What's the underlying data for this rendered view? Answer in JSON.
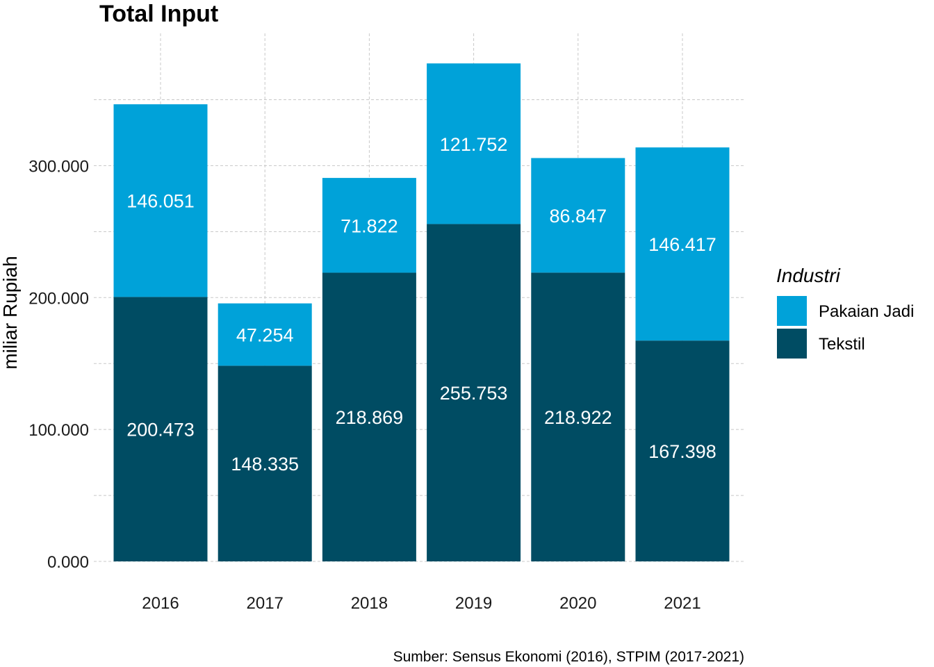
{
  "chart_data": {
    "type": "bar",
    "stacked": true,
    "title": "Total Input",
    "ylabel": "miliar Rupiah",
    "xlabel": "",
    "categories": [
      "2016",
      "2017",
      "2018",
      "2019",
      "2020",
      "2021"
    ],
    "series": [
      {
        "name": "Tekstil",
        "color": "#004c63",
        "values": [
          200.473,
          148.335,
          218.869,
          255.753,
          218.922,
          167.398
        ],
        "labels": [
          "200.473",
          "148.335",
          "218.869",
          "255.753",
          "218.922",
          "167.398"
        ]
      },
      {
        "name": "Pakaian Jadi",
        "color": "#00a2d9",
        "values": [
          146.051,
          47.254,
          71.822,
          121.752,
          86.847,
          146.417
        ],
        "labels": [
          "146.051",
          "47.254",
          "71.822",
          "121.752",
          "86.847",
          "146.417"
        ]
      }
    ],
    "yticks": [
      0,
      100,
      200,
      300
    ],
    "ytick_labels": [
      "0.000",
      "100.000",
      "200.000",
      "300.000"
    ],
    "ylim": [
      0,
      400
    ],
    "grid": true,
    "legend": {
      "title": "Industri",
      "position": "right",
      "order": [
        "Pakaian Jadi",
        "Tekstil"
      ]
    },
    "caption": "Sumber: Sensus Ekonomi (2016), STPIM (2017-2021)"
  }
}
